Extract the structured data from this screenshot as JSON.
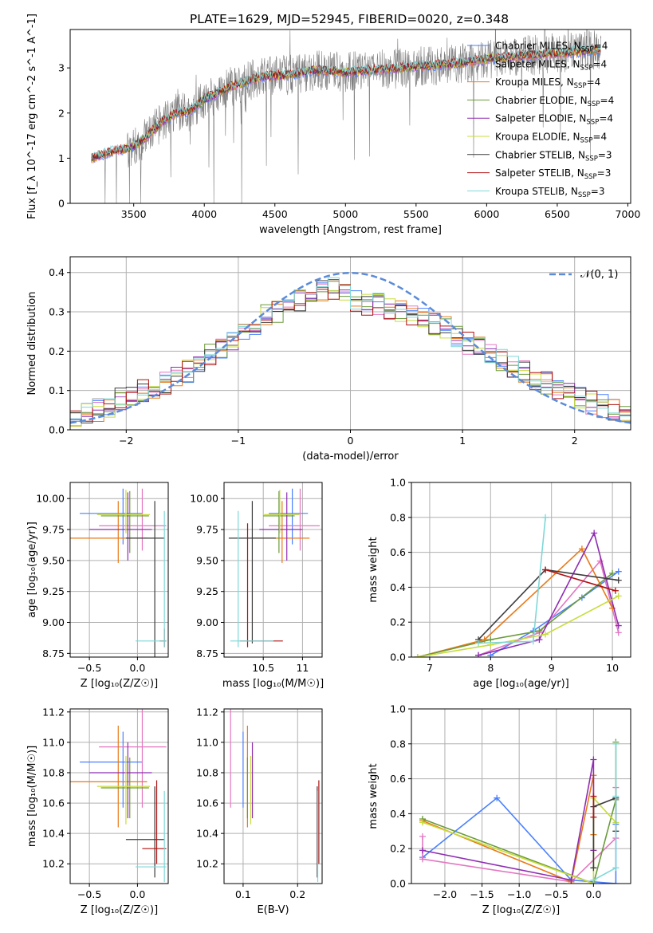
{
  "figure_title": "PLATE=1629, MJD=52945, FIBERID=0020, z=0.348",
  "colors": {
    "Chabrier MILES": "#4a80ff",
    "Salpeter MILES": "#e377c2",
    "Kroupa MILES": "#e87a19",
    "Chabrier ELODIE": "#6a9a3a",
    "Salpeter ELODIE": "#8e2db0",
    "Kroupa ELODIE": "#c8dc3c",
    "Chabrier STELIB": "#3c3c3c",
    "Salpeter STELIB": "#b01010",
    "Kroupa STELIB": "#7fd7d7",
    "data": "#808080",
    "normal": "#5b8bd9",
    "grid": "#b0b0b0"
  },
  "chart_data": [
    {
      "id": "spectrum",
      "type": "line",
      "title": "PLATE=1629, MJD=52945, FIBERID=0020, z=0.348",
      "xlabel": "wavelength [Angstrom, rest frame]",
      "ylabel": "Flux [f_λ 10^-17 erg cm^-2 s^-1 A^-1]",
      "xlim": [
        3050,
        7020
      ],
      "ylim": [
        0,
        3.85
      ],
      "xticks": [
        3500,
        4000,
        4500,
        5000,
        5500,
        6000,
        6500,
        7000
      ],
      "yticks": [
        0,
        1,
        2,
        3
      ],
      "grid": false,
      "legend_position": "right",
      "legend": [
        {
          "name": "Chabrier MILES",
          "label": "Chabrier MILES, N_SSP=4"
        },
        {
          "name": "Salpeter MILES",
          "label": "Salpeter MILES, N_SSP=4"
        },
        {
          "name": "Kroupa MILES",
          "label": "Kroupa MILES, N_SSP=4"
        },
        {
          "name": "Chabrier ELODIE",
          "label": "Chabrier ELODIE, N_SSP=4"
        },
        {
          "name": "Salpeter ELODIE",
          "label": "Salpeter ELODIE, N_SSP=4"
        },
        {
          "name": "Kroupa ELODIE",
          "label": "Kroupa ELODIE, N_SSP=4"
        },
        {
          "name": "Chabrier STELIB",
          "label": "Chabrier STELIB, N_SSP=3"
        },
        {
          "name": "Salpeter STELIB",
          "label": "Salpeter STELIB, N_SSP=3"
        },
        {
          "name": "Kroupa STELIB",
          "label": "Kroupa STELIB, N_SSP=3"
        }
      ],
      "continuum": {
        "x": [
          3200,
          3350,
          3500,
          3600,
          3700,
          3800,
          3900,
          4000,
          4200,
          4400,
          4600,
          4800,
          5000,
          5200,
          5400,
          5600,
          5800,
          6000,
          6200,
          6400,
          6600,
          6800
        ],
        "y": [
          1.0,
          1.15,
          1.25,
          1.5,
          1.8,
          2.0,
          2.05,
          2.3,
          2.6,
          2.8,
          2.85,
          2.95,
          2.9,
          2.95,
          3.0,
          3.05,
          3.1,
          3.2,
          3.25,
          3.3,
          3.35,
          3.4
        ]
      }
    },
    {
      "id": "residuals",
      "type": "histogram",
      "xlabel": "(data-model)/error",
      "ylabel": "Normed distribution",
      "xlim": [
        -2.5,
        2.5
      ],
      "ylim": [
        0,
        0.44
      ],
      "xticks": [
        -2,
        -1,
        0,
        1,
        2
      ],
      "yticks": [
        0.0,
        0.1,
        0.2,
        0.3,
        0.4
      ],
      "grid": true,
      "legend_position": "top-right",
      "legend": [
        {
          "name": "normal",
          "label": "𝒩(0, 1)"
        }
      ],
      "bins": [
        -2.5,
        -2.4,
        -2.3,
        -2.2,
        -2.1,
        -2.0,
        -1.9,
        -1.8,
        -1.7,
        -1.6,
        -1.5,
        -1.4,
        -1.3,
        -1.2,
        -1.1,
        -1.0,
        -0.9,
        -0.8,
        -0.7,
        -0.6,
        -0.5,
        -0.4,
        -0.3,
        -0.2,
        -0.1,
        0.0,
        0.1,
        0.2,
        0.3,
        0.4,
        0.5,
        0.6,
        0.7,
        0.8,
        0.9,
        1.0,
        1.1,
        1.2,
        1.3,
        1.4,
        1.5,
        1.6,
        1.7,
        1.8,
        1.9,
        2.0,
        2.1,
        2.2,
        2.3,
        2.4,
        2.5
      ],
      "envelope": [
        0.03,
        0.04,
        0.05,
        0.06,
        0.08,
        0.09,
        0.1,
        0.11,
        0.12,
        0.14,
        0.15,
        0.17,
        0.19,
        0.21,
        0.23,
        0.25,
        0.27,
        0.29,
        0.3,
        0.32,
        0.33,
        0.34,
        0.35,
        0.36,
        0.35,
        0.33,
        0.32,
        0.32,
        0.31,
        0.3,
        0.29,
        0.28,
        0.27,
        0.26,
        0.24,
        0.22,
        0.21,
        0.19,
        0.18,
        0.16,
        0.15,
        0.13,
        0.12,
        0.1,
        0.09,
        0.08,
        0.07,
        0.06,
        0.05,
        0.04
      ]
    },
    {
      "id": "age_vs_Z",
      "type": "errorbar",
      "xlabel": "Z [log₁₀(Z/Z☉)]",
      "ylabel": "age [log₁₀(age/yr)]",
      "xlim": [
        -0.7,
        0.32
      ],
      "ylim": [
        8.72,
        10.13
      ],
      "xticks": [
        -0.5,
        0.0
      ],
      "yticks": [
        8.75,
        9.0,
        9.25,
        9.5,
        9.75,
        10.0
      ],
      "grid": true,
      "points": [
        {
          "name": "Chabrier MILES",
          "x": -0.15,
          "xerr": [
            0.45,
            0.2
          ],
          "y": 9.88,
          "yerr": [
            0.25,
            0.2
          ]
        },
        {
          "name": "Salpeter MILES",
          "x": 0.05,
          "xerr": [
            0.45,
            0.25
          ],
          "y": 9.78,
          "yerr": [
            0.2,
            0.3
          ]
        },
        {
          "name": "Kroupa MILES",
          "x": -0.2,
          "xerr": [
            0.5,
            0.3
          ],
          "y": 9.68,
          "yerr": [
            0.2,
            0.3
          ]
        },
        {
          "name": "Chabrier ELODIE",
          "x": -0.08,
          "xerr": [
            0.3,
            0.2
          ],
          "y": 9.86,
          "yerr": [
            0.3,
            0.2
          ]
        },
        {
          "name": "Salpeter ELODIE",
          "x": -0.1,
          "xerr": [
            0.4,
            0.25
          ],
          "y": 9.75,
          "yerr": [
            0.25,
            0.3
          ]
        },
        {
          "name": "Kroupa ELODIE",
          "x": -0.12,
          "xerr": [
            0.3,
            0.25
          ],
          "y": 9.87,
          "yerr": [
            0.15,
            0.2
          ]
        },
        {
          "name": "Chabrier STELIB",
          "x": 0.18,
          "xerr": [
            0.3,
            0.1
          ],
          "y": 9.68,
          "yerr": [
            0.96,
            0.3
          ]
        },
        {
          "name": "Salpeter STELIB",
          "x": 0.28,
          "xerr": [
            0.05,
            0.02
          ],
          "y": 8.85,
          "yerr": [
            0.05,
            0.1
          ]
        },
        {
          "name": "Kroupa STELIB",
          "x": 0.28,
          "xerr": [
            0.3,
            0.02
          ],
          "y": 8.85,
          "yerr": [
            0.05,
            1.05
          ]
        }
      ]
    },
    {
      "id": "age_vs_mass",
      "type": "errorbar",
      "xlabel": "mass [log₁₀(M/M☉)]",
      "ylabel": "",
      "xlim": [
        10.0,
        11.25
      ],
      "ylim": [
        8.72,
        10.13
      ],
      "xticks": [
        10.5,
        11.0
      ],
      "yticks": [
        8.75,
        9.0,
        9.25,
        9.5,
        9.75,
        10.0
      ],
      "grid": true,
      "points": [
        {
          "name": "Chabrier MILES",
          "x": 10.87,
          "xerr": [
            0.3,
            0.2
          ],
          "y": 9.88,
          "yerr": [
            0.25,
            0.2
          ]
        },
        {
          "name": "Salpeter MILES",
          "x": 10.97,
          "xerr": [
            0.4,
            0.25
          ],
          "y": 9.78,
          "yerr": [
            0.2,
            0.3
          ]
        },
        {
          "name": "Kroupa MILES",
          "x": 10.74,
          "xerr": [
            0.4,
            0.35
          ],
          "y": 9.68,
          "yerr": [
            0.2,
            0.3
          ]
        },
        {
          "name": "Chabrier ELODIE",
          "x": 10.7,
          "xerr": [
            0.2,
            0.2
          ],
          "y": 9.86,
          "yerr": [
            0.3,
            0.2
          ]
        },
        {
          "name": "Salpeter ELODIE",
          "x": 10.8,
          "xerr": [
            0.35,
            0.2
          ],
          "y": 9.75,
          "yerr": [
            0.25,
            0.3
          ]
        },
        {
          "name": "Kroupa ELODIE",
          "x": 10.71,
          "xerr": [
            0.2,
            0.25
          ],
          "y": 9.87,
          "yerr": [
            0.15,
            0.2
          ]
        },
        {
          "name": "Chabrier STELIB",
          "x": 10.36,
          "xerr": [
            0.3,
            0.3
          ],
          "y": 9.68,
          "yerr": [
            0.85,
            0.3
          ]
        },
        {
          "name": "Salpeter STELIB",
          "x": 10.3,
          "xerr": [
            0.1,
            0.45
          ],
          "y": 8.85,
          "yerr": [
            0.05,
            0.95
          ]
        },
        {
          "name": "Kroupa STELIB",
          "x": 10.18,
          "xerr": [
            0.1,
            0.45
          ],
          "y": 8.85,
          "yerr": [
            0.05,
            1.05
          ]
        }
      ]
    },
    {
      "id": "weight_vs_age",
      "type": "line",
      "xlabel": "age [log₁₀(age/yr)]",
      "ylabel": "mass weight",
      "xlim": [
        6.7,
        10.3
      ],
      "ylim": [
        0,
        1.0
      ],
      "xticks": [
        7,
        8,
        9,
        10
      ],
      "yticks": [
        0.0,
        0.2,
        0.4,
        0.6,
        0.8,
        1.0
      ],
      "grid": true,
      "series": [
        {
          "name": "Chabrier MILES",
          "x": [
            8.0,
            8.7,
            9.5,
            10.1
          ],
          "y": [
            0.01,
            0.15,
            0.34,
            0.49
          ]
        },
        {
          "name": "Salpeter MILES",
          "x": [
            7.8,
            8.8,
            9.8,
            10.1
          ],
          "y": [
            0.01,
            0.14,
            0.55,
            0.14
          ]
        },
        {
          "name": "Kroupa MILES",
          "x": [
            6.8,
            7.9,
            9.5,
            10.0
          ],
          "y": [
            0.0,
            0.1,
            0.62,
            0.28
          ]
        },
        {
          "name": "Chabrier ELODIE",
          "x": [
            6.8,
            8.0,
            8.8,
            10.0
          ],
          "y": [
            0.0,
            0.1,
            0.15,
            0.48
          ]
        },
        {
          "name": "Salpeter ELODIE",
          "x": [
            7.8,
            8.8,
            9.7,
            10.1
          ],
          "y": [
            0.01,
            0.1,
            0.71,
            0.18
          ]
        },
        {
          "name": "Kroupa ELODIE",
          "x": [
            6.8,
            8.0,
            8.9,
            10.1
          ],
          "y": [
            0.0,
            0.07,
            0.13,
            0.35
          ]
        },
        {
          "name": "Chabrier STELIB",
          "x": [
            7.8,
            8.9,
            10.1
          ],
          "y": [
            0.1,
            0.5,
            0.44
          ]
        },
        {
          "name": "Salpeter STELIB",
          "x": [
            8.9,
            10.05
          ],
          "y": [
            0.5,
            0.38
          ]
        },
        {
          "name": "Kroupa STELIB",
          "x": [
            7.8,
            8.7,
            8.9
          ],
          "y": [
            0.08,
            0.09,
            0.8
          ]
        }
      ]
    },
    {
      "id": "mass_vs_Z",
      "type": "errorbar",
      "xlabel": "Z [log₁₀(Z/Z☉)]",
      "ylabel": "mass [log₁₀(M/M☉)]",
      "xlim": [
        -0.7,
        0.32
      ],
      "ylim": [
        10.07,
        11.22
      ],
      "xticks": [
        -0.5,
        0.0
      ],
      "yticks": [
        10.2,
        10.4,
        10.6,
        10.8,
        11.0,
        11.2
      ],
      "grid": true,
      "points": [
        {
          "name": "Chabrier MILES",
          "x": -0.15,
          "xerr": [
            0.45,
            0.2
          ],
          "y": 10.87,
          "yerr": [
            0.3,
            0.2
          ]
        },
        {
          "name": "Salpeter MILES",
          "x": 0.05,
          "xerr": [
            0.45,
            0.25
          ],
          "y": 10.97,
          "yerr": [
            0.4,
            0.25
          ]
        },
        {
          "name": "Kroupa MILES",
          "x": -0.2,
          "xerr": [
            0.5,
            0.3
          ],
          "y": 10.74,
          "yerr": [
            0.3,
            0.37
          ]
        },
        {
          "name": "Chabrier ELODIE",
          "x": -0.08,
          "xerr": [
            0.3,
            0.2
          ],
          "y": 10.7,
          "yerr": [
            0.2,
            0.2
          ]
        },
        {
          "name": "Salpeter ELODIE",
          "x": -0.1,
          "xerr": [
            0.4,
            0.25
          ],
          "y": 10.8,
          "yerr": [
            0.3,
            0.2
          ]
        },
        {
          "name": "Kroupa ELODIE",
          "x": -0.12,
          "xerr": [
            0.3,
            0.25
          ],
          "y": 10.71,
          "yerr": [
            0.25,
            0.2
          ]
        },
        {
          "name": "Chabrier STELIB",
          "x": 0.18,
          "xerr": [
            0.3,
            0.1
          ],
          "y": 10.36,
          "yerr": [
            0.25,
            0.35
          ]
        },
        {
          "name": "Salpeter STELIB",
          "x": 0.2,
          "xerr": [
            0.15,
            0.1
          ],
          "y": 10.3,
          "yerr": [
            0.1,
            0.45
          ]
        },
        {
          "name": "Kroupa STELIB",
          "x": 0.28,
          "xerr": [
            0.3,
            0.02
          ],
          "y": 10.18,
          "yerr": [
            0.1,
            0.5
          ]
        }
      ]
    },
    {
      "id": "mass_vs_EBV",
      "type": "errorbar",
      "xlabel": "E(B-V)",
      "ylabel": "",
      "xlim": [
        0.065,
        0.245
      ],
      "ylim": [
        10.07,
        11.22
      ],
      "xticks": [
        0.1,
        0.2
      ],
      "yticks": [
        10.2,
        10.4,
        10.6,
        10.8,
        11.0,
        11.2
      ],
      "grid": true,
      "points": [
        {
          "name": "Chabrier MILES",
          "x": 0.1,
          "yerr": [
            0.3,
            0.2
          ],
          "y": 10.87
        },
        {
          "name": "Salpeter MILES",
          "x": 0.077,
          "yerr": [
            0.4,
            0.25
          ],
          "y": 10.97
        },
        {
          "name": "Kroupa MILES",
          "x": 0.108,
          "yerr": [
            0.3,
            0.37
          ],
          "y": 10.74
        },
        {
          "name": "Chabrier ELODIE",
          "x": 0.108,
          "yerr": [
            0.2,
            0.2
          ],
          "y": 10.7
        },
        {
          "name": "Salpeter ELODIE",
          "x": 0.117,
          "yerr": [
            0.3,
            0.2
          ],
          "y": 10.8
        },
        {
          "name": "Kroupa ELODIE",
          "x": 0.114,
          "yerr": [
            0.25,
            0.2
          ],
          "y": 10.71
        },
        {
          "name": "Chabrier STELIB",
          "x": 0.236,
          "yerr": [
            0.25,
            0.35
          ],
          "y": 10.36
        },
        {
          "name": "Salpeter STELIB",
          "x": 0.239,
          "yerr": [
            0.1,
            0.45
          ],
          "y": 10.3
        },
        {
          "name": "Kroupa STELIB",
          "x": 0.237,
          "yerr": [
            0.1,
            0.5
          ],
          "y": 10.18
        }
      ]
    },
    {
      "id": "weight_vs_Z",
      "type": "line",
      "xlabel": "Z [log₁₀(Z/Z☉)]",
      "ylabel": "mass weight",
      "xlim": [
        -2.45,
        0.5
      ],
      "ylim": [
        0,
        1.0
      ],
      "xticks": [
        -2.0,
        -1.5,
        -1.0,
        -0.5,
        0.0
      ],
      "yticks": [
        0.0,
        0.2,
        0.4,
        0.6,
        0.8,
        1.0
      ],
      "grid": true,
      "series": [
        {
          "name": "Chabrier MILES",
          "x": [
            -2.3,
            -1.3,
            -0.3,
            0.3,
            0.3
          ],
          "y": [
            0.15,
            0.49,
            0.02,
            0.0,
            0.34
          ]
        },
        {
          "name": "Salpeter MILES",
          "x": [
            -2.3,
            -2.3,
            -0.3,
            0.3,
            0.3
          ],
          "y": [
            0.27,
            0.14,
            0.01,
            0.26,
            0.55
          ]
        },
        {
          "name": "Kroupa MILES",
          "x": [
            -2.3,
            -0.3,
            0.0,
            0.0
          ],
          "y": [
            0.36,
            0.01,
            0.62,
            0.28
          ]
        },
        {
          "name": "Chabrier ELODIE",
          "x": [
            -2.3,
            0.0,
            0.3,
            0.3
          ],
          "y": [
            0.37,
            0.0,
            0.48,
            0.81
          ]
        },
        {
          "name": "Salpeter ELODIE",
          "x": [
            -2.3,
            -0.3,
            0.0,
            0.0
          ],
          "y": [
            0.19,
            0.02,
            0.71,
            0.19
          ]
        },
        {
          "name": "Kroupa ELODIE",
          "x": [
            -2.3,
            0.0,
            0.0,
            0.3
          ],
          "y": [
            0.35,
            0.0,
            0.49,
            0.35
          ]
        },
        {
          "name": "Chabrier STELIB",
          "x": [
            0.0,
            0.0,
            0.3,
            0.3
          ],
          "y": [
            0.09,
            0.44,
            0.49,
            0.3
          ]
        },
        {
          "name": "Salpeter STELIB",
          "x": [
            0.0,
            0.0
          ],
          "y": [
            0.5,
            0.38
          ]
        },
        {
          "name": "Kroupa STELIB",
          "x": [
            0.0,
            0.3,
            0.3,
            0.3
          ],
          "y": [
            0.02,
            0.09,
            0.8,
            0.5
          ]
        }
      ]
    }
  ]
}
